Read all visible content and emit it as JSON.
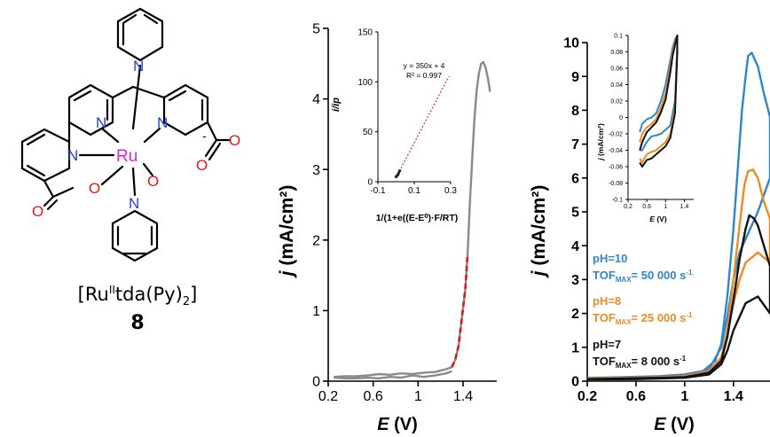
{
  "molecule": {
    "name_prefix": "[Ru",
    "name_sup": "II",
    "name_mid": "tda(Py)",
    "name_sub": "2",
    "name_suffix": "]",
    "number": "8",
    "atoms": {
      "ru": "Ru",
      "n": "N",
      "o": "O",
      "minus": "-"
    }
  },
  "colors": {
    "ru": "#e020e0",
    "n": "#1f3fd6",
    "o": "#e01818",
    "gray": "#8a8a8a",
    "red_dash": "#e01818",
    "ph10": "#2f86c8",
    "ph8": "#f08a24",
    "ph7": "#111111"
  },
  "panel_b": {
    "ylabel_italic": "j",
    "ylabel_rest": " (mA/cm²)",
    "xlabel_italic": "E",
    "xlabel_rest": " (V)"
  },
  "panel_b_inset": {
    "ylabel": "i/ip",
    "xlabel": "1/(1+e((E-E⁰)·F/RT)",
    "fit_eq": "y = 350x + 4",
    "fit_r2": "R² = 0.997"
  },
  "panel_c": {
    "ylabel_italic": "j",
    "ylabel_rest": " (mA/cm²)",
    "xlabel_italic": "E",
    "xlabel_rest": " (V)",
    "legend": [
      {
        "ph": "pH=10",
        "tof_pre": "TOF",
        "tof_sub": "MAX",
        "tof_val": "= 50 000 s",
        "tof_sup": "-1",
        "color": "#2f86c8"
      },
      {
        "ph": "pH=8",
        "tof_pre": "TOF",
        "tof_sub": "MAX",
        "tof_val": "= 25 000 s",
        "tof_sup": "-1",
        "color": "#f08a24"
      },
      {
        "ph": "pH=7",
        "tof_pre": "TOF",
        "tof_sub": "MAX",
        "tof_val": "= 8 000 s",
        "tof_sup": "-1",
        "color": "#111111"
      }
    ]
  },
  "panel_c_inset": {
    "ylabel_italic": "j",
    "ylabel_rest": " (mA/cm²)",
    "xlabel_italic": "E",
    "xlabel_rest": " (V)"
  },
  "chart_data": [
    {
      "type": "line",
      "xlim": [
        0.2,
        1.7
      ],
      "ylim": [
        0,
        5
      ],
      "xticks": [
        0.2,
        0.6,
        1,
        1.4
      ],
      "xtick_labels": [
        "0.2",
        "0.6",
        "1",
        "1.4"
      ],
      "yticks": [
        0,
        1,
        2,
        3,
        4,
        5
      ],
      "ytick_labels": [
        "0",
        "1",
        "2",
        "3",
        "4",
        "5"
      ],
      "series": [
        {
          "x": [
            0.25,
            0.35,
            0.45,
            0.55,
            0.65,
            0.75,
            0.85,
            0.95,
            1.05,
            1.15,
            1.25,
            1.3,
            1.33,
            1.36,
            1.39,
            1.42,
            1.44,
            1.46,
            1.48,
            1.5,
            1.52,
            1.54,
            1.56,
            1.58,
            1.6,
            1.62,
            1.64
          ],
          "y": [
            0.06,
            0.07,
            0.07,
            0.08,
            0.1,
            0.09,
            0.11,
            0.1,
            0.12,
            0.13,
            0.17,
            0.2,
            0.3,
            0.5,
            0.9,
            1.3,
            1.8,
            2.5,
            3.1,
            3.7,
            4.1,
            4.35,
            4.5,
            4.52,
            4.45,
            4.3,
            4.1
          ]
        },
        {
          "x": [
            1.3,
            1.25,
            1.15,
            1.05,
            0.95,
            0.85,
            0.75,
            0.65,
            0.55,
            0.45,
            0.35,
            0.25
          ],
          "y": [
            0.14,
            0.11,
            0.08,
            0.06,
            0.08,
            0.05,
            0.06,
            0.04,
            0.05,
            0.04,
            0.04,
            0.05
          ]
        },
        {
          "x": [
            1.3,
            1.33,
            1.36,
            1.39,
            1.42,
            1.44
          ],
          "y": [
            0.2,
            0.3,
            0.5,
            0.9,
            1.3,
            1.8
          ],
          "style": "dashed-red"
        }
      ]
    },
    {
      "type": "scatter",
      "inset_of": "panel_b",
      "xlim": [
        -0.1,
        0.3
      ],
      "ylim": [
        0,
        150
      ],
      "xticks": [
        -0.1,
        0.1,
        0.3
      ],
      "xtick_labels": [
        "-0.1",
        "0.1",
        "0.3"
      ],
      "yticks": [
        0,
        50,
        100,
        150
      ],
      "ytick_labels": [
        "0",
        "50",
        "100",
        "150"
      ],
      "series": [
        {
          "x": [
            0.0,
            0.005,
            0.01,
            0.015,
            0.02
          ],
          "y": [
            5,
            6,
            7,
            9,
            11
          ]
        }
      ],
      "fit": {
        "slope": 350,
        "intercept": 4,
        "x_range": [
          0.0,
          0.29
        ]
      }
    },
    {
      "type": "line",
      "xlim": [
        0.2,
        1.7
      ],
      "ylim": [
        0,
        10
      ],
      "xticks": [
        0.2,
        0.6,
        1,
        1.4
      ],
      "xtick_labels": [
        "0.2",
        "0.6",
        "1",
        "1.4"
      ],
      "yticks": [
        0,
        1,
        2,
        3,
        4,
        5,
        6,
        7,
        8,
        9,
        10
      ],
      "ytick_labels": [
        "0",
        "1",
        "2",
        "3",
        "4",
        "5",
        "6",
        "7",
        "8",
        "9",
        "10"
      ],
      "series": [
        {
          "name": "pH=10",
          "x": [
            0.2,
            0.5,
            0.8,
            1.0,
            1.15,
            1.25,
            1.3,
            1.35,
            1.4,
            1.44,
            1.47,
            1.5,
            1.52,
            1.55,
            1.6,
            1.65,
            1.7,
            1.7,
            1.6,
            1.5,
            1.45,
            1.4,
            1.35,
            1.3,
            1.2,
            1.0,
            0.6,
            0.2
          ],
          "y": [
            0.1,
            0.12,
            0.15,
            0.2,
            0.3,
            0.6,
            1.1,
            2.5,
            4.5,
            6.5,
            8.0,
            9.0,
            9.6,
            9.7,
            9.3,
            8.5,
            7.8,
            6.0,
            5.0,
            4.2,
            3.8,
            3.0,
            1.9,
            1.0,
            0.35,
            0.15,
            0.08,
            0.06
          ]
        },
        {
          "name": "pH=8",
          "x": [
            0.2,
            0.5,
            0.8,
            1.0,
            1.2,
            1.3,
            1.35,
            1.4,
            1.45,
            1.49,
            1.52,
            1.56,
            1.6,
            1.65,
            1.7,
            1.7,
            1.6,
            1.5,
            1.45,
            1.4,
            1.35,
            1.3,
            1.2,
            1.0,
            0.6,
            0.2
          ],
          "y": [
            0.08,
            0.1,
            0.12,
            0.15,
            0.3,
            0.7,
            1.5,
            3.0,
            4.6,
            5.8,
            6.2,
            6.25,
            6.0,
            5.3,
            4.8,
            3.5,
            3.8,
            3.5,
            3.0,
            2.3,
            1.4,
            0.7,
            0.25,
            0.12,
            0.07,
            0.05
          ]
        },
        {
          "name": "pH=7",
          "x": [
            0.2,
            0.5,
            0.8,
            1.0,
            1.2,
            1.3,
            1.35,
            1.4,
            1.45,
            1.5,
            1.53,
            1.57,
            1.6,
            1.65,
            1.7,
            1.7,
            1.6,
            1.5,
            1.45,
            1.4,
            1.35,
            1.3,
            1.2,
            1.0,
            0.6,
            0.2
          ],
          "y": [
            0.06,
            0.08,
            0.1,
            0.12,
            0.25,
            0.6,
            1.3,
            2.4,
            3.6,
            4.5,
            4.9,
            4.8,
            4.6,
            4.0,
            3.4,
            2.0,
            2.5,
            2.3,
            1.9,
            1.5,
            0.9,
            0.5,
            0.2,
            0.1,
            0.06,
            0.05
          ]
        }
      ]
    },
    {
      "type": "line",
      "inset_of": "panel_c",
      "xlim": [
        0.2,
        1.6
      ],
      "ylim": [
        -0.1,
        0.1
      ],
      "xticks": [
        0.2,
        0.6,
        1,
        1.4
      ],
      "xtick_labels": [
        "0.2",
        "0.6",
        "1",
        "1.4"
      ],
      "yticks": [
        -0.1,
        -0.08,
        -0.06,
        -0.04,
        -0.02,
        0,
        0.02,
        0.04,
        0.06,
        0.08,
        0.1
      ],
      "ytick_labels": [
        "-0.1",
        "-0.08",
        "-0.06",
        "-0.04",
        "-0.02",
        "0",
        "0.02",
        "0.04",
        "0.06",
        "0.08",
        "0.1"
      ],
      "series": [
        {
          "name": "pH=10",
          "x": [
            0.45,
            0.5,
            0.6,
            0.7,
            0.8,
            0.9,
            1.0,
            1.05,
            1.1,
            1.15,
            1.2,
            1.25,
            1.25,
            1.2,
            1.1,
            1.0,
            0.9,
            0.8,
            0.7,
            0.6,
            0.5,
            0.45
          ],
          "y": [
            -0.018,
            -0.008,
            -0.002,
            0.0,
            0.005,
            0.02,
            0.04,
            0.055,
            0.07,
            0.085,
            0.095,
            0.1,
            0.09,
            0.02,
            -0.01,
            -0.015,
            -0.02,
            -0.022,
            -0.023,
            -0.03,
            -0.04,
            -0.04
          ]
        },
        {
          "name": "pH=8",
          "x": [
            0.45,
            0.5,
            0.6,
            0.7,
            0.8,
            0.9,
            1.0,
            1.05,
            1.1,
            1.15,
            1.2,
            1.25,
            1.25,
            1.2,
            1.1,
            1.0,
            0.9,
            0.8,
            0.7,
            0.6,
            0.5,
            0.45
          ],
          "y": [
            -0.03,
            -0.02,
            -0.012,
            -0.008,
            -0.002,
            0.012,
            0.03,
            0.045,
            0.062,
            0.08,
            0.09,
            0.1,
            0.085,
            0.01,
            -0.02,
            -0.03,
            -0.035,
            -0.04,
            -0.042,
            -0.045,
            -0.055,
            -0.05
          ]
        },
        {
          "name": "pH=7",
          "x": [
            0.45,
            0.5,
            0.6,
            0.7,
            0.8,
            0.9,
            1.0,
            1.05,
            1.1,
            1.15,
            1.2,
            1.25,
            1.25,
            1.2,
            1.1,
            1.0,
            0.9,
            0.8,
            0.7,
            0.6,
            0.5,
            0.45
          ],
          "y": [
            -0.04,
            -0.03,
            -0.018,
            -0.012,
            -0.006,
            0.006,
            0.022,
            0.038,
            0.055,
            0.075,
            0.088,
            0.1,
            0.08,
            0.005,
            -0.025,
            -0.035,
            -0.04,
            -0.045,
            -0.05,
            -0.052,
            -0.06,
            -0.055
          ]
        }
      ]
    }
  ]
}
